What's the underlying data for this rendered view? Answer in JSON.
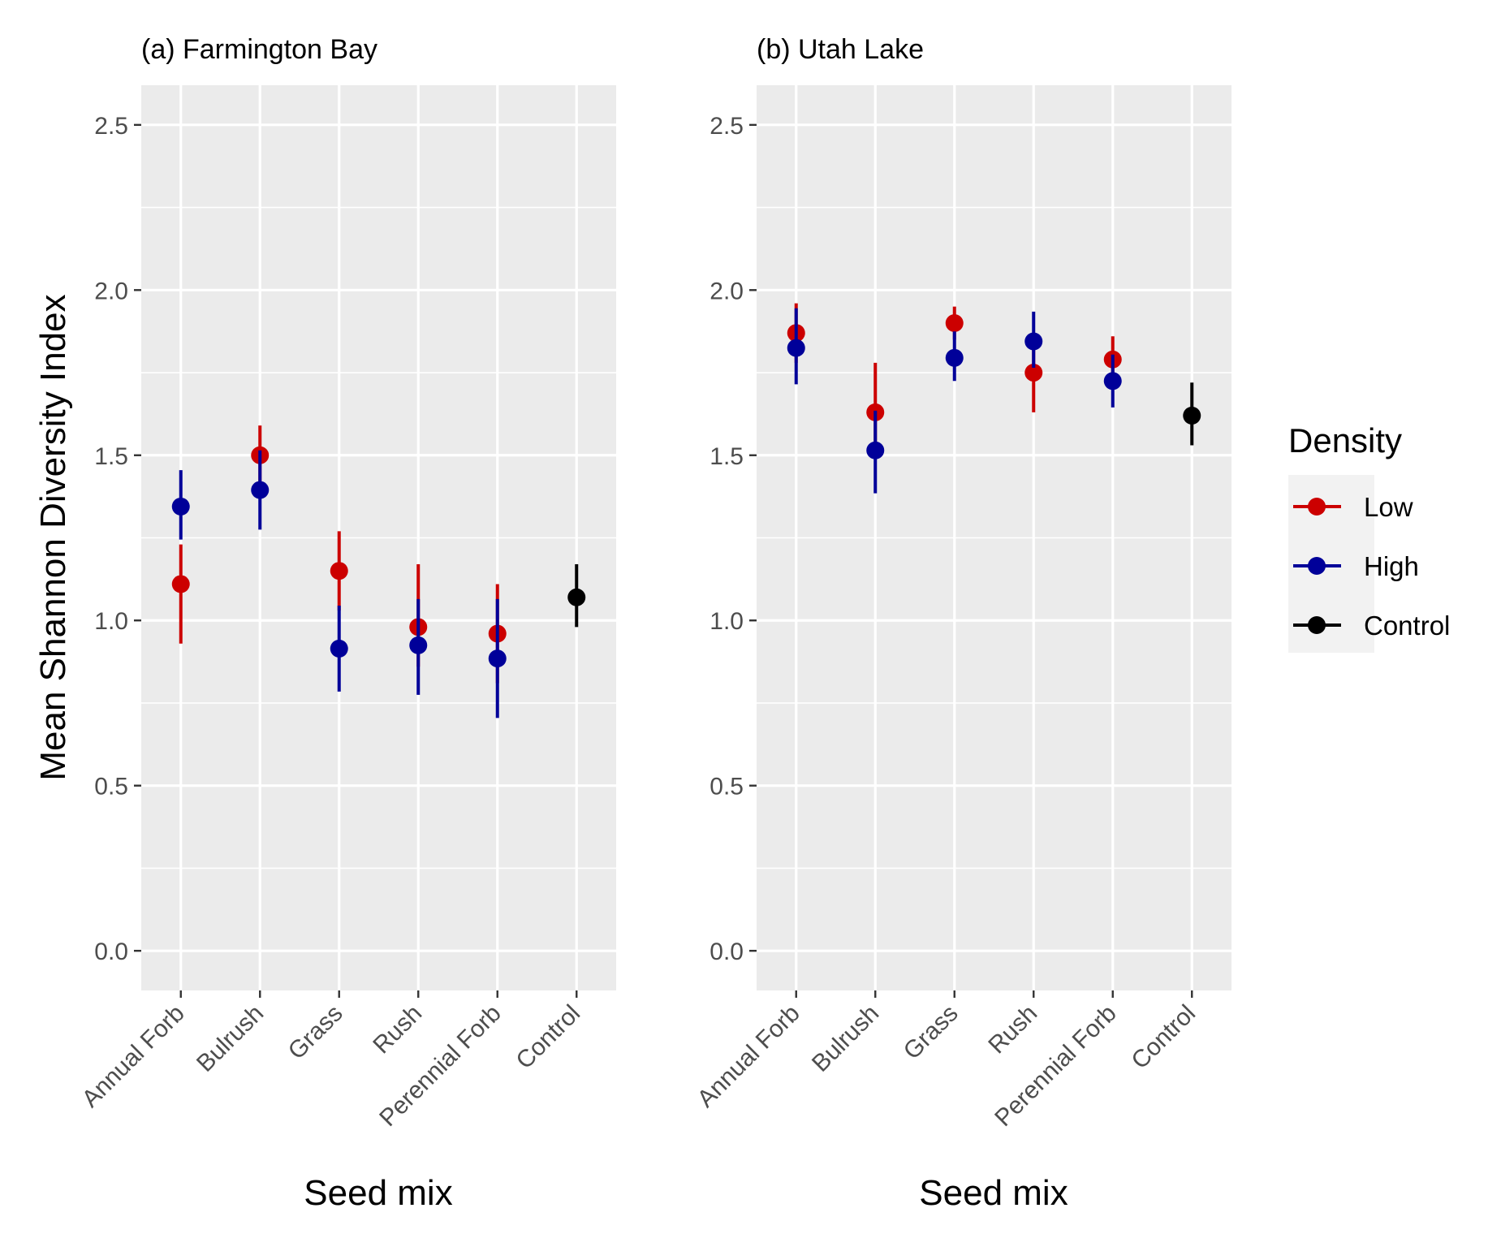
{
  "colors": {
    "Low": "#cc0000",
    "High": "#000099",
    "Control": "#000000",
    "panel_bg": "#ebebeb",
    "grid": "#ffffff",
    "tick": "#333333"
  },
  "y_axis_title": "Mean Shannon Diversity Index",
  "legend": {
    "title": "Density",
    "items": [
      {
        "key": "Low",
        "label": "Low"
      },
      {
        "key": "High",
        "label": "High"
      },
      {
        "key": "Control",
        "label": "Control"
      }
    ]
  },
  "chart_data": [
    {
      "type": "scatter",
      "title": "(a) Farmington Bay",
      "xlabel": "Seed mix",
      "ylabel": "Mean Shannon Diversity Index",
      "categories": [
        "Annual Forb",
        "Bulrush",
        "Grass",
        "Rush",
        "Perennial Forb",
        "Control"
      ],
      "ylim": [
        -0.12,
        2.62
      ],
      "yticks": [
        "0.0",
        "0.5",
        "1.0",
        "1.5",
        "2.0",
        "2.5"
      ],
      "grid": true,
      "legend_position": "right",
      "series": [
        {
          "name": "Low",
          "points": [
            {
              "x": "Annual Forb",
              "y": 1.11,
              "lo": 0.93,
              "hi": 1.23
            },
            {
              "x": "Bulrush",
              "y": 1.5,
              "lo": 1.39,
              "hi": 1.59
            },
            {
              "x": "Grass",
              "y": 1.15,
              "lo": 1.03,
              "hi": 1.27
            },
            {
              "x": "Rush",
              "y": 0.98,
              "lo": 0.86,
              "hi": 1.17
            },
            {
              "x": "Perennial Forb",
              "y": 0.96,
              "lo": 0.81,
              "hi": 1.11
            }
          ]
        },
        {
          "name": "High",
          "points": [
            {
              "x": "Annual Forb",
              "y": 1.33,
              "lo": 1.23,
              "hi": 1.44
            },
            {
              "x": "Bulrush",
              "y": 1.38,
              "lo": 1.26,
              "hi": 1.5
            },
            {
              "x": "Grass",
              "y": 0.9,
              "lo": 0.77,
              "hi": 1.03
            },
            {
              "x": "Rush",
              "y": 0.91,
              "lo": 0.76,
              "hi": 1.05
            },
            {
              "x": "Perennial Forb",
              "y": 0.87,
              "lo": 0.69,
              "hi": 1.05
            }
          ]
        },
        {
          "name": "Control",
          "points": [
            {
              "x": "Control",
              "y": 1.07,
              "lo": 0.98,
              "hi": 1.17
            }
          ]
        }
      ]
    },
    {
      "type": "scatter",
      "title": "(b) Utah Lake",
      "xlabel": "Seed mix",
      "ylabel": "",
      "categories": [
        "Annual Forb",
        "Bulrush",
        "Grass",
        "Rush",
        "Perennial Forb",
        "Control"
      ],
      "ylim": [
        -0.12,
        2.62
      ],
      "yticks": [
        "0.0",
        "0.5",
        "1.0",
        "1.5",
        "2.0",
        "2.5"
      ],
      "grid": true,
      "legend_position": "right",
      "series": [
        {
          "name": "Low",
          "points": [
            {
              "x": "Annual Forb",
              "y": 1.87,
              "lo": 1.78,
              "hi": 1.96
            },
            {
              "x": "Bulrush",
              "y": 1.63,
              "lo": 1.5,
              "hi": 1.78
            },
            {
              "x": "Grass",
              "y": 1.9,
              "lo": 1.85,
              "hi": 1.95
            },
            {
              "x": "Rush",
              "y": 1.75,
              "lo": 1.63,
              "hi": 1.87
            },
            {
              "x": "Perennial Forb",
              "y": 1.79,
              "lo": 1.72,
              "hi": 1.86
            }
          ]
        },
        {
          "name": "High",
          "points": [
            {
              "x": "Annual Forb",
              "y": 1.81,
              "lo": 1.7,
              "hi": 1.93
            },
            {
              "x": "Bulrush",
              "y": 1.5,
              "lo": 1.37,
              "hi": 1.62
            },
            {
              "x": "Grass",
              "y": 1.78,
              "lo": 1.71,
              "hi": 1.86
            },
            {
              "x": "Rush",
              "y": 1.83,
              "lo": 1.75,
              "hi": 1.92
            },
            {
              "x": "Perennial Forb",
              "y": 1.71,
              "lo": 1.63,
              "hi": 1.79
            }
          ]
        },
        {
          "name": "Control",
          "points": [
            {
              "x": "Control",
              "y": 1.62,
              "lo": 1.53,
              "hi": 1.72
            }
          ]
        }
      ]
    }
  ]
}
